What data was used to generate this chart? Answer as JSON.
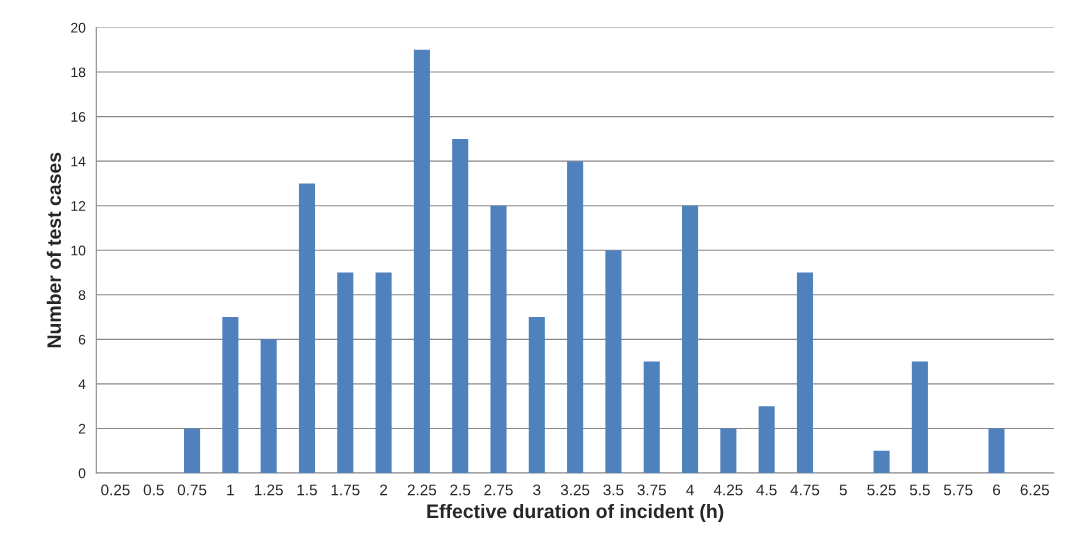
{
  "chart_data": {
    "type": "bar",
    "xlabel": "Effective duration of incident (h)",
    "ylabel": "Number of test cases",
    "categories": [
      "0.25",
      "0.5",
      "0.75",
      "1",
      "1.25",
      "1.5",
      "1.75",
      "2",
      "2.25",
      "2.5",
      "2.75",
      "3",
      "3.25",
      "3.5",
      "3.75",
      "4",
      "4.25",
      "4.5",
      "4.75",
      "5",
      "5.25",
      "5.5",
      "5.75",
      "6",
      "6.25"
    ],
    "values": [
      0,
      0,
      2,
      7,
      6,
      13,
      9,
      9,
      19,
      15,
      12,
      7,
      14,
      10,
      5,
      12,
      2,
      3,
      9,
      0,
      1,
      5,
      0,
      2,
      0
    ],
    "color": "#4f81bd",
    "ylim": [
      0,
      20
    ],
    "yticks": [
      0,
      2,
      4,
      6,
      8,
      10,
      12,
      14,
      16,
      18,
      20
    ],
    "grid": "y",
    "legend": false
  }
}
